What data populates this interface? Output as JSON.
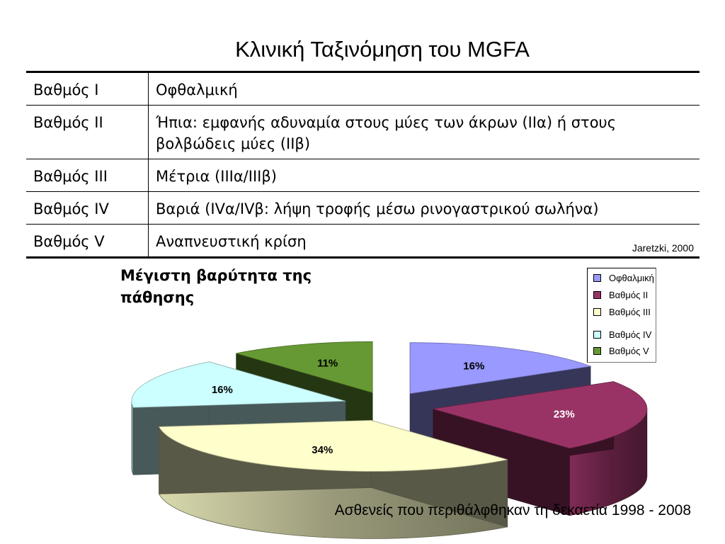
{
  "title": "Κλινική Ταξινόμηση του MGFA",
  "table": {
    "rows": [
      {
        "grade": "Βαθμός I",
        "description": "Οφθαλμική"
      },
      {
        "grade": "Βαθμός II",
        "description": "Ήπια: εμφανής αδυναμία στους μύες των άκρων (ΙΙα) ή στους βολβώδεις μύες (ΙΙβ)"
      },
      {
        "grade": "Βαθμός III",
        "description": "Μέτρια (ΙΙΙα/ΙΙΙβ)"
      },
      {
        "grade": "Βαθμός IV",
        "description": "Βαριά (IVα/IVβ: λήψη τροφής μέσω ρινογαστρικού σωλήνα)"
      },
      {
        "grade": "Βαθμός V",
        "description": "Αναπνευστική κρίση"
      }
    ],
    "citation": "Jaretzki, 2000"
  },
  "chart_data": {
    "type": "pie",
    "title": "Μέγιστη βαρύτητα της πάθησης",
    "series": [
      {
        "slices": [
          {
            "label": "Οφθαλμική",
            "value": 16,
            "value_label": "16%",
            "color": "#9999ff"
          },
          {
            "label": "Βαθμός II",
            "value": 23,
            "value_label": "23%",
            "color": "#993366"
          },
          {
            "label": "Βαθμός III",
            "value": 34,
            "value_label": "34%",
            "color": "#ffffcc"
          },
          {
            "label": "Βαθμός IV",
            "value": 16,
            "value_label": "16%",
            "color": "#ccffff"
          },
          {
            "label": "Βαθμός V",
            "value": 11,
            "value_label": "11%",
            "color": "#669933"
          }
        ]
      }
    ],
    "style": "3d-exploded",
    "legend_position": "top-right"
  },
  "footer": "Ασθενείς που περιθάλφθηκαν τη δεκαετία 1998 - 2008"
}
